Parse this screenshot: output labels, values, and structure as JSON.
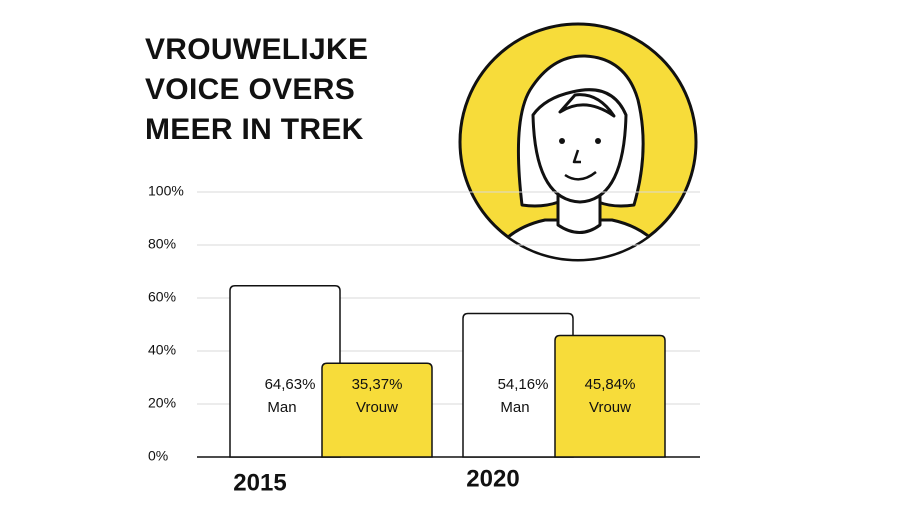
{
  "chart_data": {
    "type": "bar",
    "title": "VROUWELIJKE VOICE OVERS MEER IN TREK",
    "categories": [
      "2015",
      "2020"
    ],
    "series": [
      {
        "name": "Man",
        "color": "#ffffff",
        "values": [
          64.63,
          54.16
        ],
        "value_labels": [
          "64,63%",
          "54,16%"
        ]
      },
      {
        "name": "Vrouw",
        "color": "#f7dc3a",
        "values": [
          35.37,
          45.84
        ],
        "value_labels": [
          "35,37%",
          "45,84%"
        ]
      }
    ],
    "ylim": [
      0,
      100
    ],
    "yticks": [
      {
        "value": 0,
        "label": "0%"
      },
      {
        "value": 20,
        "label": "20%"
      },
      {
        "value": 40,
        "label": "40%"
      },
      {
        "value": 60,
        "label": "60%"
      },
      {
        "value": 80,
        "label": "80%"
      },
      {
        "value": 100,
        "label": "100%"
      }
    ],
    "grid": true
  }
}
